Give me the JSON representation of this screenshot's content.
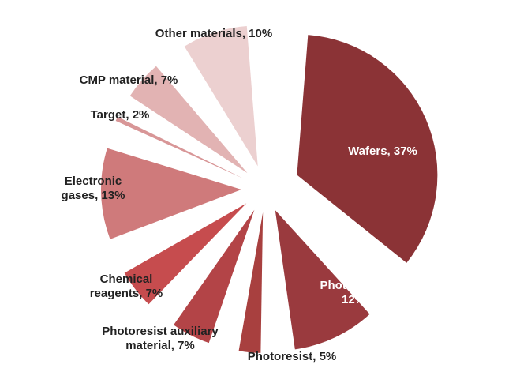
{
  "chart_data": {
    "type": "pie",
    "title": "",
    "exploded": true,
    "slices": [
      {
        "name": "Wafers",
        "value": 37,
        "label_lines": [
          "Wafers, 37%"
        ],
        "color": "#8b3336"
      },
      {
        "name": "Photomask",
        "value": 12,
        "label_lines": [
          "Photomask,",
          "12%"
        ],
        "color": "#9a3a3e"
      },
      {
        "name": "Photoresist",
        "value": 5,
        "label_lines": [
          "Photoresist, 5%"
        ],
        "color": "#a8403f"
      },
      {
        "name": "Photoresist auxiliary material",
        "value": 7,
        "label_lines": [
          "Photoresist auxiliary",
          "material, 7%"
        ],
        "color": "#b34447"
      },
      {
        "name": "Chemical reagents",
        "value": 7,
        "label_lines": [
          "Chemical",
          "reagents, 7%"
        ],
        "color": "#c64c4e"
      },
      {
        "name": "Electronic gases",
        "value": 13,
        "label_lines": [
          "Electronic",
          "gases, 13%"
        ],
        "color": "#cf7a7b"
      },
      {
        "name": "Target",
        "value": 2,
        "label_lines": [
          "Target, 2%"
        ],
        "color": "#d89697"
      },
      {
        "name": "CMP material",
        "value": 7,
        "label_lines": [
          "CMP material, 7%"
        ],
        "color": "#e2b3b3"
      },
      {
        "name": "Other materials",
        "value": 10,
        "label_lines": [
          "Other materials, 10%"
        ],
        "color": "#ecd0d0"
      }
    ]
  }
}
